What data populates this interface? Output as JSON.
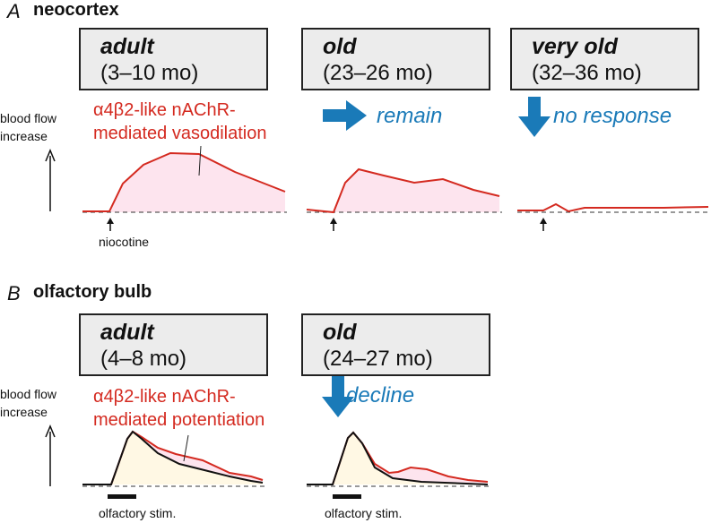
{
  "panel_a": {
    "letter": "A",
    "title": "neocortex",
    "groups": [
      {
        "group": "adult",
        "range": "(3–10 mo)"
      },
      {
        "group": "old",
        "range": "(23–26 mo)"
      },
      {
        "group": "very old",
        "range": "(32–36 mo)"
      }
    ],
    "ylabel_line1": "blood flow",
    "ylabel_line2": "increase",
    "annotation_line1": "α4β2-like nAChR-",
    "annotation_line2": "mediated vasodilation",
    "old_change": "remain",
    "very_old_change": "no response",
    "stimulus_label": "niocotine"
  },
  "panel_b": {
    "letter": "B",
    "title": "olfactory bulb",
    "groups": [
      {
        "group": "adult",
        "range": "(4–8 mo)"
      },
      {
        "group": "old",
        "range": "(24–27 mo)"
      }
    ],
    "ylabel_line1": "blood flow",
    "ylabel_line2": "increase",
    "annotation_line1": "α4β2-like nAChR-",
    "annotation_line2": "mediated potentiation",
    "old_change": "decline",
    "stimulus_label_adult": "olfactory stim.",
    "stimulus_label_old": "olfactory stim."
  },
  "colors": {
    "red_trace": "#d42a20",
    "pink_fill": "#fde4ee",
    "yellow_fill": "#fff8e4",
    "blue_arrow": "#1a7ab8",
    "box_fill": "#ececec"
  }
}
